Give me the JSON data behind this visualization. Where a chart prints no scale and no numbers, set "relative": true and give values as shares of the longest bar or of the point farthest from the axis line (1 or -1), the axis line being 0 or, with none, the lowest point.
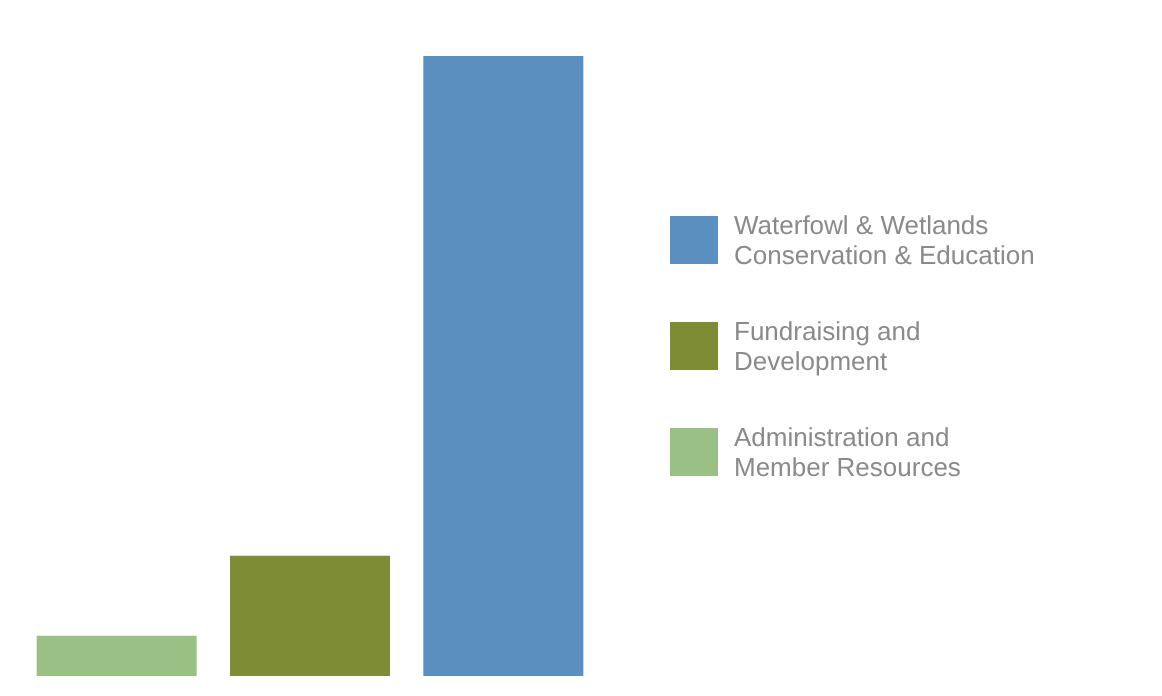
{
  "chart_data": {
    "type": "bar",
    "relative": true,
    "stacked": true,
    "categories": [
      null,
      null,
      null
    ],
    "series": [
      {
        "name": "Waterfowl & Wetlands Conservation & Education",
        "color": "#5a8fc0",
        "values": [
          null,
          null,
          1
        ]
      },
      {
        "name": "Fundraising and Development",
        "color": "#7f8c36",
        "values": [
          null,
          0.194,
          null
        ]
      },
      {
        "name": "Administration and Member Resources",
        "color": "#9bc085",
        "values": [
          0.065,
          null,
          null
        ]
      }
    ],
    "legend": "right"
  }
}
